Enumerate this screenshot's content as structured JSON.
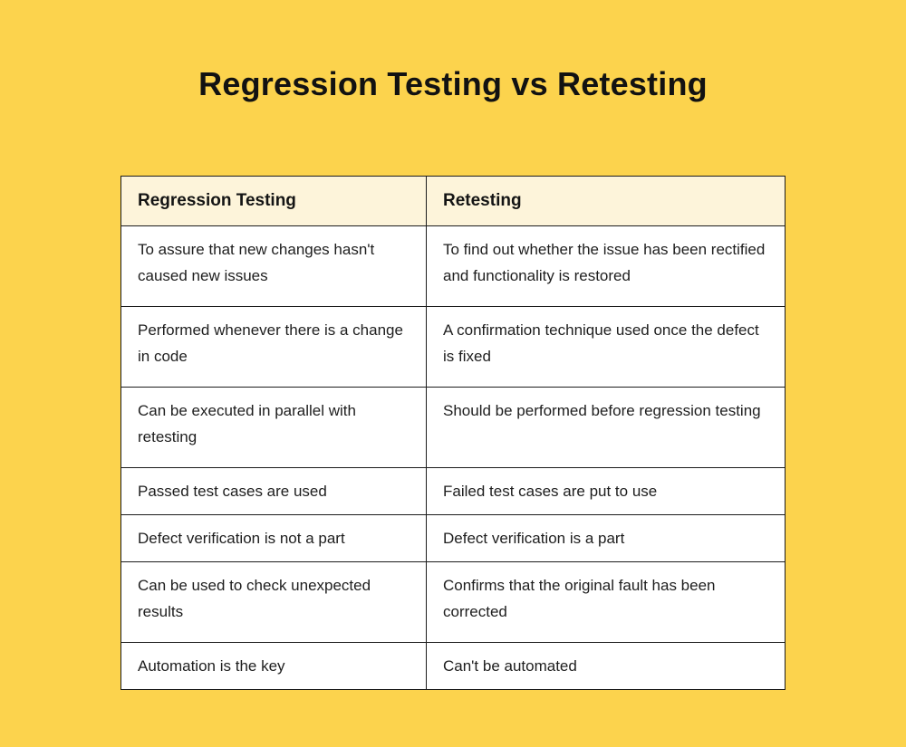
{
  "page": {
    "title": "Regression Testing vs Retesting",
    "background_color": "#FCD34D",
    "title_color": "#121212"
  },
  "table": {
    "header_background": "#FDF4DA",
    "body_background": "#FFFFFF",
    "border_color": "#1C1C1C",
    "columns": [
      {
        "label": "Regression Testing"
      },
      {
        "label": "Retesting"
      }
    ],
    "rows": [
      [
        "To assure that new changes hasn't caused new issues",
        "To find out whether the issue has been rectified and functionality is restored"
      ],
      [
        "Performed whenever there is a change in code",
        "A confirmation technique used once the defect is fixed"
      ],
      [
        "Can be executed in parallel with retesting",
        "Should be performed before regression testing"
      ],
      [
        "Passed test cases are used",
        "Failed test cases are put to use"
      ],
      [
        "Defect verification is not a part",
        "Defect verification is a part"
      ],
      [
        "Can be used to check unexpected results",
        "Confirms that the original fault has been corrected"
      ],
      [
        "Automation is the key",
        "Can't be automated"
      ]
    ]
  }
}
